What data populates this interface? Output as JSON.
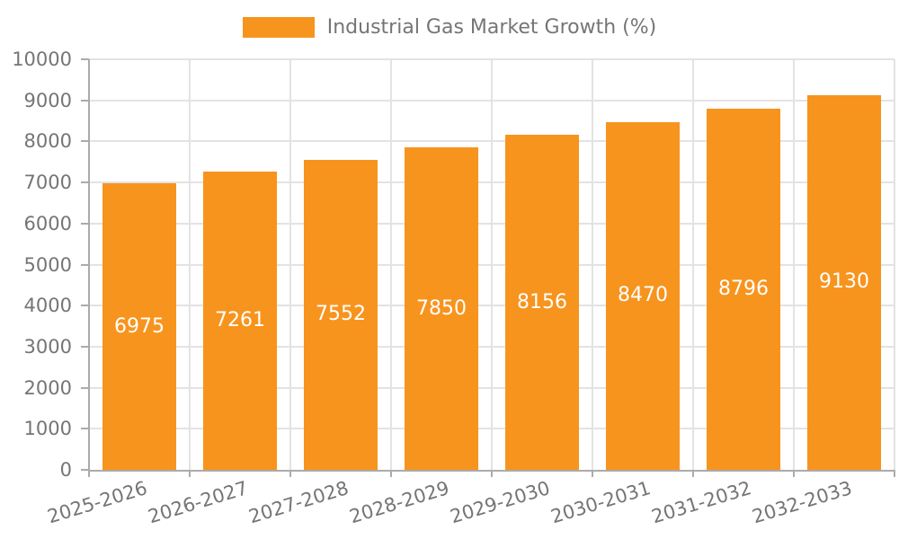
{
  "legend": {
    "series_label": "Industrial Gas Market Growth (%)"
  },
  "chart_data": {
    "type": "bar",
    "title": "Industrial Gas Market Growth (%)",
    "categories": [
      "2025-2026",
      "2026-2027",
      "2027-2028",
      "2028-2029",
      "2029-2030",
      "2030-2031",
      "2031-2032",
      "2032-2033"
    ],
    "values": [
      6975,
      7261,
      7552,
      7850,
      8156,
      8470,
      8796,
      9130
    ],
    "bar_value_labels": [
      "6975",
      "7261",
      "7552",
      "7850",
      "8156",
      "8470",
      "8796",
      "9130"
    ],
    "xlabel": "",
    "ylabel": "",
    "ylim": [
      0,
      10000
    ],
    "ytick_interval": 1000,
    "ytick_labels": [
      "0",
      "1000",
      "2000",
      "3000",
      "4000",
      "5000",
      "6000",
      "7000",
      "8000",
      "9000",
      "10000"
    ],
    "grid": true,
    "legend_position": "top",
    "colors": {
      "bar": "#f7941e",
      "bar_label_text": "#ffffff",
      "axis_text": "#757575",
      "axis_line": "#ababab",
      "gridline": "#e3e3e3"
    }
  }
}
